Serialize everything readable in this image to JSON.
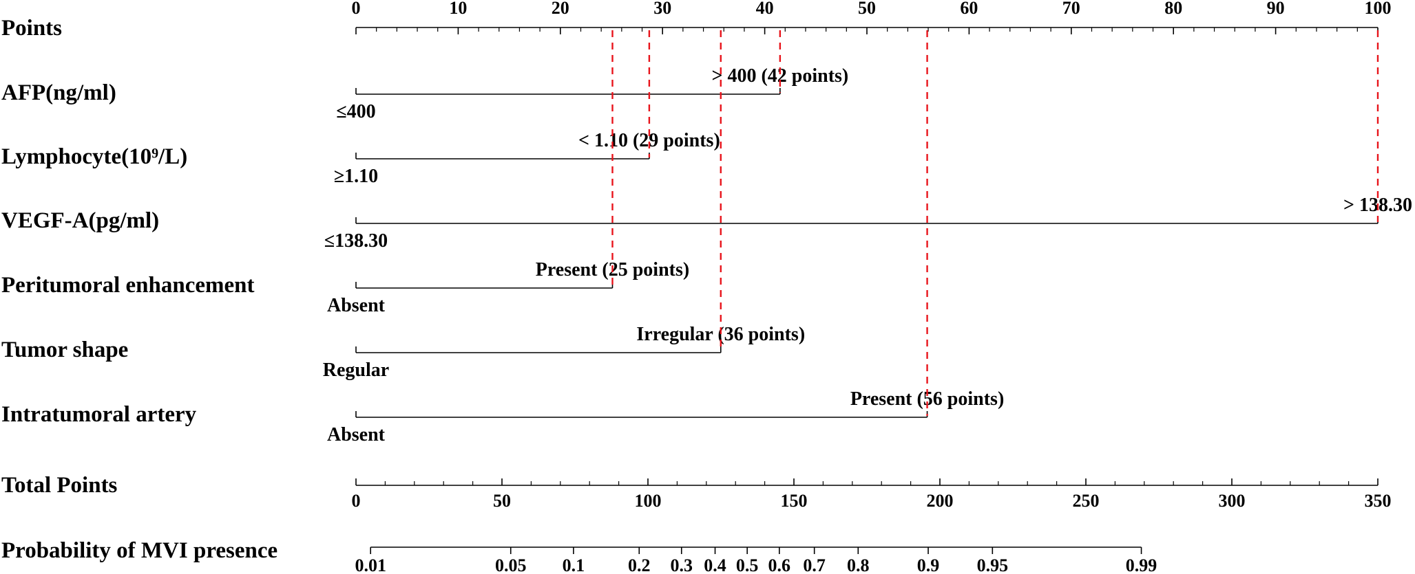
{
  "chart_data": {
    "type": "nomogram",
    "title": "",
    "points_axis": {
      "label": "Points",
      "range": [
        0,
        100
      ],
      "major_ticks": [
        0,
        10,
        20,
        30,
        40,
        50,
        60,
        70,
        80,
        90,
        100
      ],
      "tick_labels": [
        "0",
        "10",
        "20",
        "30",
        "40",
        "50",
        "60",
        "70",
        "80",
        "90",
        "100"
      ],
      "minor_step": 2
    },
    "predictors": [
      {
        "label": "AFP(ng/ml)",
        "levels": [
          {
            "label": "≤400",
            "points": 0
          },
          {
            "label": "> 400 (42 points)",
            "points": 41.5
          }
        ]
      },
      {
        "label": "Lymphocyte(10⁹/L)",
        "levels": [
          {
            "label": "≥1.10",
            "points": 0
          },
          {
            "label": "< 1.10 (29 points)",
            "points": 28.7
          }
        ]
      },
      {
        "label": "VEGF-A(pg/ml)",
        "levels": [
          {
            "label": "≤138.30",
            "points": 0
          },
          {
            "label": "> 138.30",
            "points": 100
          }
        ]
      },
      {
        "label": "Peritumoral enhancement",
        "levels": [
          {
            "label": "Absent",
            "points": 0
          },
          {
            "label": "Present (25 points)",
            "points": 25.1
          }
        ]
      },
      {
        "label": "Tumor shape",
        "levels": [
          {
            "label": "Regular",
            "points": 0
          },
          {
            "label": "Irregular (36 points)",
            "points": 35.7
          }
        ]
      },
      {
        "label": "Intratumoral artery",
        "levels": [
          {
            "label": "Absent",
            "points": 0
          },
          {
            "label": "Present (56 points)",
            "points": 55.9
          }
        ]
      }
    ],
    "total_points_axis": {
      "label": "Total Points",
      "range": [
        0,
        350
      ],
      "major_ticks": [
        0,
        50,
        100,
        150,
        200,
        250,
        300,
        350
      ],
      "tick_labels": [
        "0",
        "50",
        "100",
        "150",
        "200",
        "250",
        "300",
        "350"
      ],
      "minor_step": 10
    },
    "probability_axis": {
      "label": "Probability of MVI presence",
      "ticks": [
        {
          "label": "0.01",
          "total_points": 5
        },
        {
          "label": "0.05",
          "total_points": 53
        },
        {
          "label": "0.1",
          "total_points": 74.5
        },
        {
          "label": "0.2",
          "total_points": 97
        },
        {
          "label": "0.3",
          "total_points": 111.5
        },
        {
          "label": "0.4",
          "total_points": 123
        },
        {
          "label": "0.5",
          "total_points": 134
        },
        {
          "label": "0.6",
          "total_points": 145
        },
        {
          "label": "0.7",
          "total_points": 157
        },
        {
          "label": "0.8",
          "total_points": 172
        },
        {
          "label": "0.9",
          "total_points": 196
        },
        {
          "label": "0.95",
          "total_points": 218
        },
        {
          "label": "0.99",
          "total_points": 269
        }
      ]
    },
    "reference_line_color": "#e8141b"
  }
}
